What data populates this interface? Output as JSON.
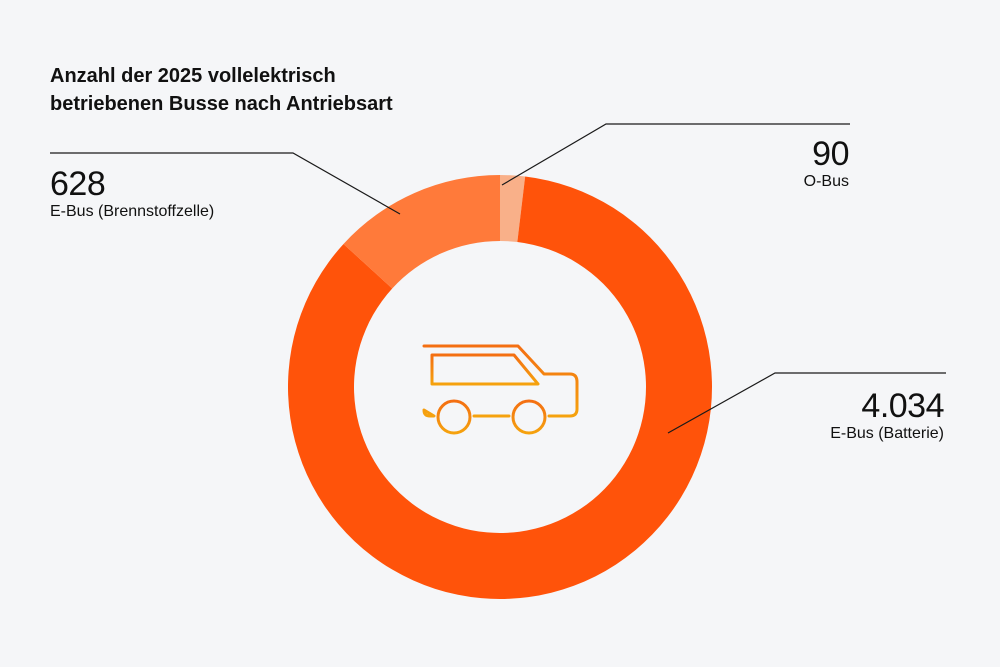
{
  "title_lines": [
    "Anzahl der 2025 vollelektrisch",
    "betriebenen Busse nach Antriebsart"
  ],
  "colors": {
    "battery": "#ff530a",
    "fuel_cell": "#ff7a3a",
    "trolley": "#f9b089",
    "icon_top": "#f46f12",
    "icon_bottom": "#f5a20e",
    "background": "#f5f6f8"
  },
  "center_icon": "bus-icon",
  "labels": {
    "obus": {
      "value": "90",
      "name": "O-Bus"
    },
    "fuel_cell": {
      "value": "628",
      "name": "E-Bus (Brennstoffzelle)"
    },
    "battery": {
      "value": "4.034",
      "name": "E-Bus (Batterie)"
    }
  },
  "chart_data": {
    "type": "pie",
    "variant": "donut",
    "title": "Anzahl der 2025 vollelektrisch betriebenen Busse nach Antriebsart",
    "slices": [
      {
        "label": "O-Bus",
        "value": 90
      },
      {
        "label": "E-Bus (Batterie)",
        "value": 4034
      },
      {
        "label": "E-Bus (Brennstoffzelle)",
        "value": 628
      }
    ]
  }
}
